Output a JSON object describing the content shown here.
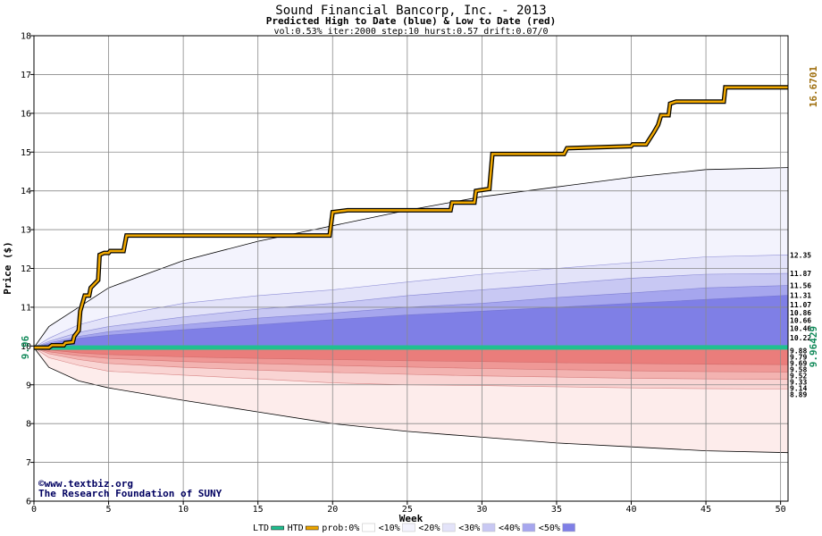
{
  "chart_data": {
    "type": "area",
    "title": "Sound Financial Bancorp, Inc. - 2013",
    "subtitle": "Predicted High to Date (blue) &  Low to Date (red)",
    "params": "vol:0.53% iter:2000 step:10 hurst:0.57 drift:0.07/0",
    "xlabel": "Week",
    "ylabel": "Price ($)",
    "xlim": [
      0,
      50.5
    ],
    "ylim": [
      6,
      18
    ],
    "x_ticks": [
      0,
      5,
      10,
      15,
      20,
      25,
      30,
      35,
      40,
      45,
      50
    ],
    "y_ticks": [
      6,
      7,
      8,
      9,
      10,
      11,
      12,
      13,
      14,
      15,
      16,
      17,
      18
    ],
    "grid": true,
    "start_price": 9.96,
    "start_price_label": "9.96",
    "current_price": 9.96429,
    "current_price_label": "9.96429",
    "max_price": 16.6701,
    "max_price_label": "16.6701",
    "x": [
      0,
      1,
      3,
      5,
      10,
      15,
      20,
      25,
      30,
      35,
      40,
      45,
      50.5
    ],
    "upper_bands": [
      {
        "name": "<10%",
        "color": "#f3f3fd",
        "values": [
          9.96,
          10.5,
          11.0,
          11.5,
          12.2,
          12.7,
          13.1,
          13.5,
          13.85,
          14.1,
          14.35,
          14.55,
          14.6
        ]
      },
      {
        "name": "<20%",
        "color": "#e3e3f9",
        "values": [
          9.96,
          10.2,
          10.55,
          10.75,
          11.1,
          11.3,
          11.45,
          11.65,
          11.85,
          12.0,
          12.15,
          12.3,
          12.35
        ]
      },
      {
        "name": "<30%",
        "color": "#c8c8f3",
        "values": [
          9.96,
          10.12,
          10.35,
          10.5,
          10.75,
          10.95,
          11.1,
          11.3,
          11.45,
          11.6,
          11.75,
          11.85,
          11.87
        ]
      },
      {
        "name": "<40%",
        "color": "#a6a6ee",
        "values": [
          9.96,
          10.08,
          10.25,
          10.37,
          10.55,
          10.72,
          10.85,
          11.0,
          11.1,
          11.25,
          11.37,
          11.5,
          11.56
        ]
      },
      {
        "name": "<50%",
        "color": "#7f7fe6",
        "values": [
          9.96,
          10.05,
          10.2,
          10.28,
          10.42,
          10.55,
          10.68,
          10.8,
          10.9,
          11.0,
          11.1,
          11.2,
          11.31
        ]
      }
    ],
    "lower_bands": [
      {
        "name": "<10%",
        "color": "#fdeceb",
        "values": [
          9.96,
          9.45,
          9.1,
          8.92,
          8.6,
          8.3,
          8.0,
          7.8,
          7.65,
          7.5,
          7.4,
          7.3,
          7.25
        ]
      },
      {
        "name": "<20%",
        "color": "#f9d4d3",
        "values": [
          9.96,
          9.7,
          9.5,
          9.35,
          9.25,
          9.15,
          9.05,
          9.0,
          8.98,
          8.95,
          8.92,
          8.9,
          8.89
        ]
      },
      {
        "name": "<30%",
        "color": "#f3b3b1",
        "values": [
          9.96,
          9.8,
          9.65,
          9.55,
          9.45,
          9.38,
          9.32,
          9.27,
          9.23,
          9.2,
          9.17,
          9.15,
          9.14
        ]
      },
      {
        "name": "<40%",
        "color": "#ef9896",
        "values": [
          9.96,
          9.85,
          9.75,
          9.68,
          9.6,
          9.55,
          9.5,
          9.46,
          9.42,
          9.39,
          9.36,
          9.34,
          9.33
        ]
      },
      {
        "name": "<50%",
        "color": "#ea7d7b",
        "values": [
          9.96,
          9.9,
          9.82,
          9.78,
          9.72,
          9.68,
          9.65,
          9.62,
          9.6,
          9.57,
          9.55,
          9.53,
          9.52
        ]
      }
    ],
    "actual_high_series": {
      "name": "HTD",
      "color": "#f0a800",
      "points": [
        [
          0,
          9.96
        ],
        [
          1,
          9.96
        ],
        [
          1.2,
          10.02
        ],
        [
          2,
          10.02
        ],
        [
          2.1,
          10.08
        ],
        [
          2.6,
          10.1
        ],
        [
          2.7,
          10.25
        ],
        [
          3.0,
          10.4
        ],
        [
          3.1,
          10.9
        ],
        [
          3.4,
          11.3
        ],
        [
          3.7,
          11.3
        ],
        [
          3.8,
          11.5
        ],
        [
          4.3,
          11.7
        ],
        [
          4.4,
          12.35
        ],
        [
          4.7,
          12.4
        ],
        [
          5.0,
          12.4
        ],
        [
          5.1,
          12.45
        ],
        [
          6.0,
          12.45
        ],
        [
          6.2,
          12.85
        ],
        [
          19.8,
          12.85
        ],
        [
          20.0,
          13.45
        ],
        [
          21.0,
          13.5
        ],
        [
          27.9,
          13.5
        ],
        [
          28.0,
          13.7
        ],
        [
          29.5,
          13.7
        ],
        [
          29.6,
          14.0
        ],
        [
          30.5,
          14.05
        ],
        [
          30.7,
          14.95
        ],
        [
          35.5,
          14.95
        ],
        [
          35.7,
          15.1
        ],
        [
          40.0,
          15.15
        ],
        [
          40.1,
          15.2
        ],
        [
          41.0,
          15.2
        ],
        [
          41.5,
          15.5
        ],
        [
          41.8,
          15.7
        ],
        [
          42.0,
          15.95
        ],
        [
          42.5,
          15.95
        ],
        [
          42.6,
          16.25
        ],
        [
          43.0,
          16.3
        ],
        [
          46.2,
          16.3
        ],
        [
          46.3,
          16.67
        ],
        [
          50.5,
          16.67
        ]
      ]
    },
    "actual_low_series": {
      "name": "LTD",
      "color": "#20c090",
      "points": [
        [
          0,
          9.96
        ],
        [
          50.5,
          9.96429
        ]
      ]
    },
    "right_labels": [
      {
        "value": 12.35,
        "label": "12.35"
      },
      {
        "value": 11.87,
        "label": "11.87"
      },
      {
        "value": 11.56,
        "label": "11.56"
      },
      {
        "value": 11.31,
        "label": "11.31"
      },
      {
        "value": 11.07,
        "label": "11.07"
      },
      {
        "value": 10.86,
        "label": "10.86"
      },
      {
        "value": 10.66,
        "label": "10.66"
      },
      {
        "value": 10.46,
        "label": "10.46"
      },
      {
        "value": 10.22,
        "label": "10.22"
      },
      {
        "value": 9.88,
        "label": "9.88"
      },
      {
        "value": 9.79,
        "label": "9.79"
      },
      {
        "value": 9.69,
        "label": "9.69"
      },
      {
        "value": 9.58,
        "label": "9.58"
      },
      {
        "value": 9.52,
        "label": "9.52"
      },
      {
        "value": 9.33,
        "label": "9.33"
      },
      {
        "value": 9.14,
        "label": "9.14"
      },
      {
        "value": 8.89,
        "label": "8.89"
      }
    ],
    "legend": {
      "items": [
        {
          "label": "LTD",
          "color": "#20c090",
          "kind": "line"
        },
        {
          "label": "HTD",
          "color": "#f0a800",
          "kind": "line"
        },
        {
          "label": "prob:0%",
          "color": "#ffffff",
          "kind": "box"
        },
        {
          "label": "<10%",
          "color": "#f3f3fd",
          "kind": "box"
        },
        {
          "label": "<20%",
          "color": "#e3e3f9",
          "kind": "box"
        },
        {
          "label": "<30%",
          "color": "#c8c8f3",
          "kind": "box"
        },
        {
          "label": "<40%",
          "color": "#a6a6ee",
          "kind": "box"
        },
        {
          "label": "<50%",
          "color": "#7f7fe6",
          "kind": "box"
        }
      ]
    },
    "watermark_line1": "©www.textbiz.org",
    "watermark_line2": "The Research Foundation of SUNY"
  }
}
